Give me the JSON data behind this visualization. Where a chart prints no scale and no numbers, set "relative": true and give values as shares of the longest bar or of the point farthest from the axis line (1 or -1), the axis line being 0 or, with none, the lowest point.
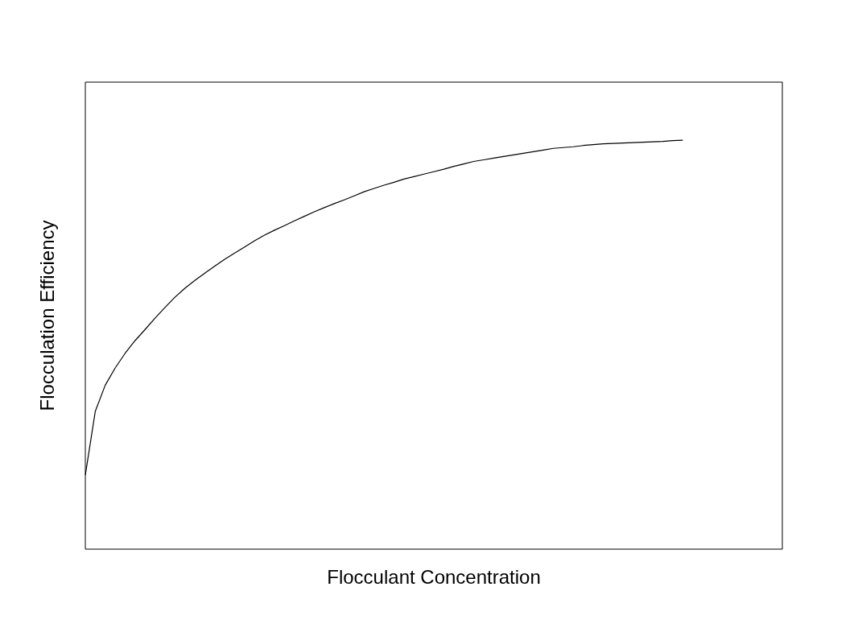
{
  "chart_data": {
    "type": "line",
    "xlabel": "Flocculant Concentration",
    "ylabel": "Flocculation Efficiency",
    "relative": true,
    "marker": "none",
    "line_style": "solid",
    "legend": false,
    "categories": [
      null,
      null,
      null,
      null,
      null,
      null,
      null,
      null,
      null,
      null,
      null,
      null,
      null,
      null,
      null,
      null,
      null,
      null,
      null,
      null,
      null,
      null,
      null,
      null,
      null,
      null,
      null,
      null,
      null,
      null,
      null,
      null,
      null,
      null,
      null,
      null,
      null,
      null,
      null,
      null,
      null,
      null,
      null,
      null,
      null,
      null,
      null,
      null,
      null,
      null,
      null,
      null,
      null,
      null,
      null,
      null,
      null,
      null,
      null,
      null,
      null,
      null,
      null,
      null,
      null,
      null,
      null,
      null,
      null,
      null,
      null
    ],
    "series": [
      {
        "color": "#000000",
        "values": [
          0.181,
          0.337,
          0.401,
          0.443,
          0.479,
          0.51,
          0.537,
          0.565,
          0.591,
          0.616,
          0.638,
          0.657,
          0.675,
          0.692,
          0.709,
          0.724,
          0.739,
          0.754,
          0.768,
          0.78,
          0.791,
          0.803,
          0.814,
          0.825,
          0.835,
          0.845,
          0.854,
          0.864,
          0.874,
          0.882,
          0.89,
          0.897,
          0.905,
          0.911,
          0.917,
          0.923,
          0.929,
          0.936,
          0.942,
          0.948,
          0.952,
          0.956,
          0.96,
          0.964,
          0.968,
          0.972,
          0.976,
          0.98,
          0.982,
          0.984,
          0.987,
          0.989,
          0.991,
          0.992,
          0.993,
          0.994,
          0.995,
          0.996,
          0.997,
          0.999,
          1,
          null,
          null,
          null,
          null,
          null,
          null,
          null,
          null,
          null,
          null
        ]
      }
    ]
  }
}
